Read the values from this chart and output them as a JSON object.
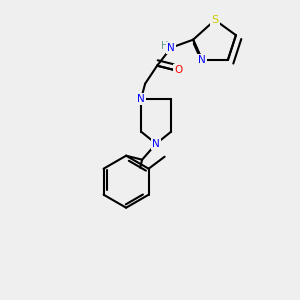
{
  "bg_color": "#efefef",
  "atom_colors": {
    "N": "#0000ff",
    "O": "#ff0000",
    "S": "#cccc00",
    "C": "#000000",
    "H": "#5a9a8a"
  },
  "bond_lw": 1.5,
  "font_size": 7.5
}
